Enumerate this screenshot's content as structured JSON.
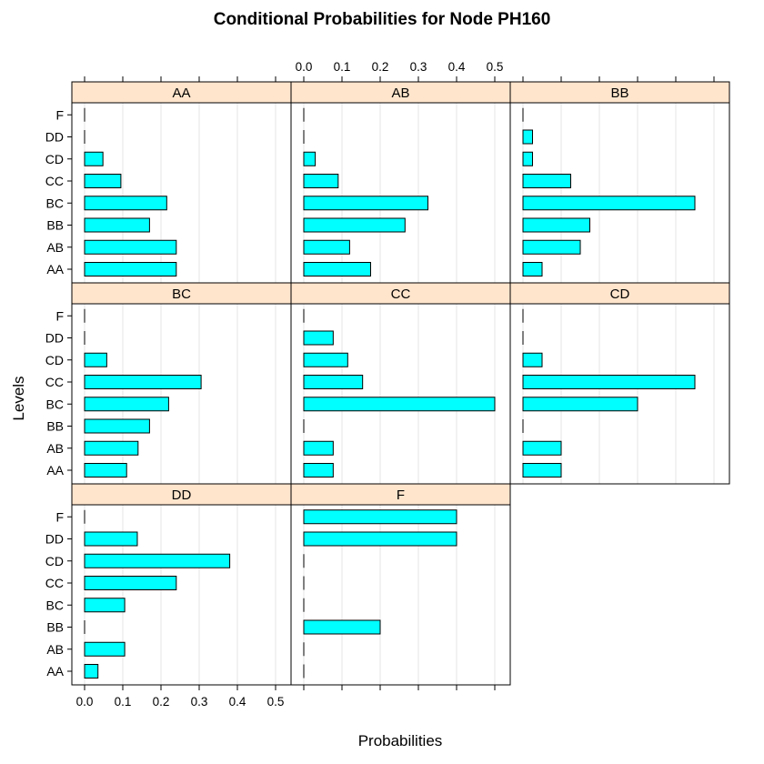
{
  "chart_data": {
    "type": "bar",
    "orientation": "horizontal",
    "title": "Conditional Probabilities for Node PH160",
    "xlabel": "Probabilities",
    "ylabel": "Levels",
    "levels": [
      "AA",
      "AB",
      "BB",
      "BC",
      "CC",
      "CD",
      "DD",
      "F"
    ],
    "xlim": [
      0,
      0.52
    ],
    "xticks": [
      "0.0",
      "0.1",
      "0.2",
      "0.3",
      "0.4",
      "0.5"
    ],
    "grid": true,
    "colors": {
      "bar_fill": "#00ffff",
      "bar_stroke": "#000000",
      "strip_bg": "#ffe5cc",
      "grid": "#e6e6e6"
    },
    "panels": [
      {
        "name": "AA",
        "values": [
          0.24,
          0.24,
          0.17,
          0.215,
          0.095,
          0.048,
          0.0,
          0.0
        ]
      },
      {
        "name": "AB",
        "values": [
          0.175,
          0.12,
          0.265,
          0.325,
          0.09,
          0.03,
          0.0,
          0.0
        ]
      },
      {
        "name": "BB",
        "values": [
          0.05,
          0.15,
          0.175,
          0.45,
          0.125,
          0.025,
          0.025,
          0.0
        ]
      },
      {
        "name": "BC",
        "values": [
          0.11,
          0.14,
          0.17,
          0.22,
          0.305,
          0.058,
          0.0,
          0.0
        ]
      },
      {
        "name": "CC",
        "values": [
          0.077,
          0.077,
          0.0,
          0.5,
          0.154,
          0.115,
          0.077,
          0.0
        ]
      },
      {
        "name": "CD",
        "values": [
          0.1,
          0.1,
          0.0,
          0.3,
          0.45,
          0.05,
          0.0,
          0.0
        ]
      },
      {
        "name": "DD",
        "values": [
          0.035,
          0.105,
          0.0,
          0.105,
          0.24,
          0.38,
          0.138,
          0.0
        ]
      },
      {
        "name": "F",
        "values": [
          0.0,
          0.0,
          0.2,
          0.0,
          0.0,
          0.0,
          0.4,
          0.4
        ]
      }
    ]
  }
}
